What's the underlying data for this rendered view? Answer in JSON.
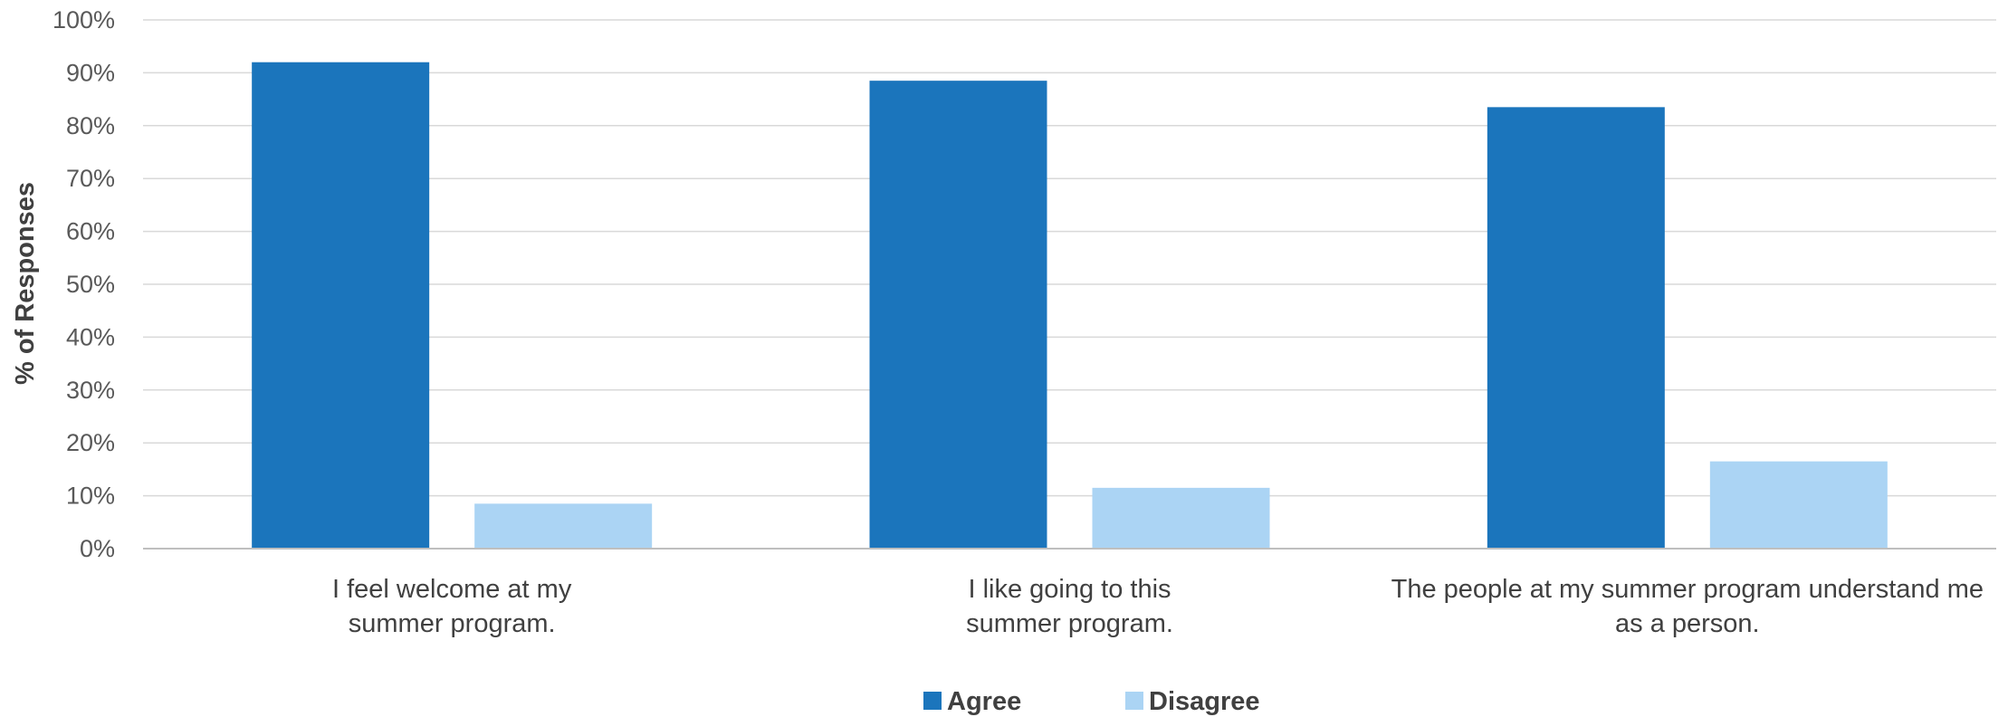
{
  "chart_data": {
    "type": "bar",
    "title": "",
    "xlabel": "",
    "ylabel": "% of Responses",
    "ylim": [
      0,
      100
    ],
    "yticks": [
      "0%",
      "10%",
      "20%",
      "30%",
      "40%",
      "50%",
      "60%",
      "70%",
      "80%",
      "90%",
      "100%"
    ],
    "categories": [
      [
        "I feel welcome at my",
        "summer program."
      ],
      [
        "I like going to this",
        "summer program."
      ],
      [
        "The people at my summer program understand me",
        "as a person."
      ]
    ],
    "series": [
      {
        "name": "Agree",
        "color": "#1b75bc",
        "values": [
          92,
          88.5,
          83.5
        ]
      },
      {
        "name": "Disagree",
        "color": "#abd4f4",
        "values": [
          8.5,
          11.5,
          16.5
        ]
      }
    ],
    "grid": true,
    "legend": "bottom-center"
  }
}
